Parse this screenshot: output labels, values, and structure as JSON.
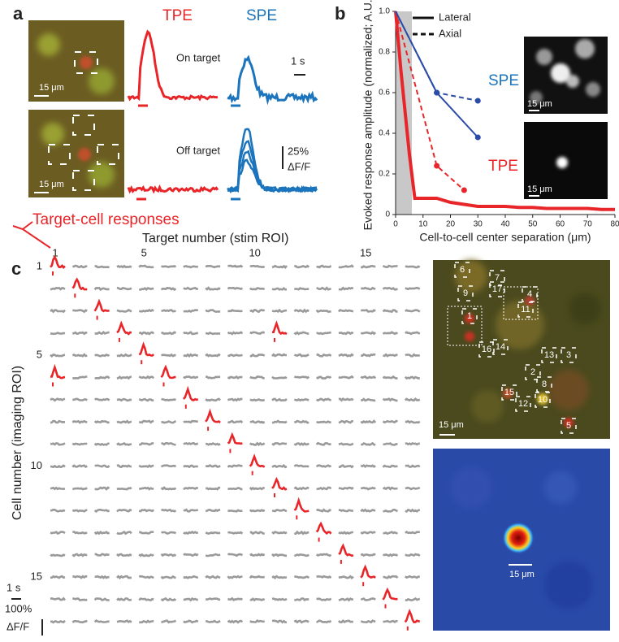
{
  "panel_a": {
    "label": "a",
    "tpe": "TPE",
    "spe": "SPE",
    "on_target": "On target",
    "off_target": "Off target",
    "time_scale": "1 s",
    "amp_scale": "25%",
    "amp_unit": "ΔF/F",
    "scale_bar_1": "15 μm",
    "scale_bar_2": "15 μm"
  },
  "panel_b": {
    "label": "b",
    "inset_scale_1": "15 μm",
    "inset_scale_2": "15 μm"
  },
  "chart_data": {
    "type": "line",
    "x_label": "Cell-to-cell center separation (μm)",
    "y_label": "Evoked response amplitude (normalized; A.U.)",
    "xlim": [
      0,
      80
    ],
    "xticks": [
      0,
      10,
      20,
      30,
      40,
      50,
      60,
      70,
      80
    ],
    "ylim": [
      0,
      1
    ],
    "yticks": [
      0,
      0.2,
      0.4,
      0.6,
      0.8,
      {
        "value": 1,
        "label": "1.0"
      }
    ],
    "legend_labels": [
      "Lateral",
      "Axial"
    ],
    "annotations": [
      "SPE",
      "TPE"
    ],
    "series": [
      {
        "color": "#e8262a",
        "style": "solid",
        "x": [
          0,
          2,
          5,
          7,
          10,
          15,
          20,
          25,
          30,
          35,
          40,
          45,
          50,
          55,
          60,
          65,
          70,
          75,
          80
        ],
        "values": [
          1,
          0.7,
          0.3,
          0.08,
          0.08,
          0.08,
          0.06,
          0.05,
          0.04,
          0.04,
          0.04,
          0.035,
          0.035,
          0.03,
          0.03,
          0.03,
          0.03,
          0.025,
          0.025
        ]
      },
      {
        "color": "#e8262a",
        "style": "dashed",
        "x": [
          0,
          15,
          25
        ],
        "values": [
          1,
          0.24,
          0.12
        ]
      },
      {
        "color": "#2b4ba8",
        "style": "solid",
        "x": [
          0,
          15,
          30
        ],
        "values": [
          1,
          0.6,
          0.38
        ]
      },
      {
        "color": "#2b4ba8",
        "style": "dashed",
        "x": [
          0,
          15,
          30
        ],
        "values": [
          1,
          0.6,
          0.56
        ]
      }
    ]
  },
  "panel_c": {
    "label": "c",
    "target_cell_responses": "Target-cell responses",
    "x_title": "Target number (stim ROI)",
    "y_title": "Cell number (imaging ROI)",
    "column_labels": [
      1,
      5,
      10,
      15
    ],
    "row_labels": [
      1,
      5,
      10,
      15
    ],
    "time_scale": "1 s",
    "amp_scale": "100%",
    "amp_unit": "ΔF/F",
    "roi_labels": [
      "1",
      "2",
      "3",
      "4",
      "5",
      "6",
      "7",
      "8",
      "9",
      "10",
      "11",
      "12",
      "13",
      "14",
      "15",
      "16",
      "17"
    ],
    "image_scale_1": "15 μm",
    "image_scale_2": "15 μm"
  }
}
